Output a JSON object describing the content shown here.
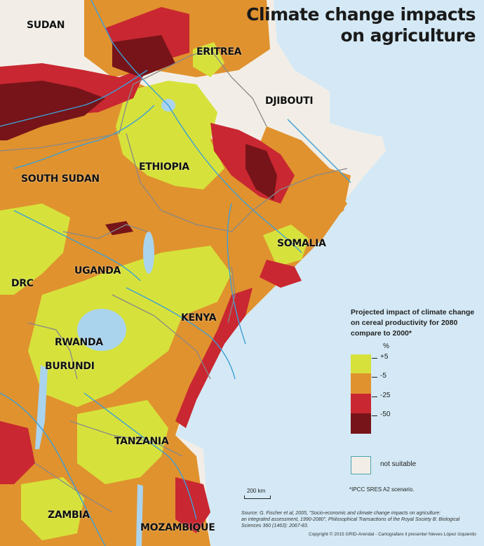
{
  "title": {
    "line1": "Climate change impacts",
    "line2": "on agriculture"
  },
  "countries": {
    "sudan": "SUDAN",
    "eritrea": "ERITREA",
    "djibouti": "DJIBOUTI",
    "ethiopia": "ETHIOPIA",
    "south_sudan": "SOUTH SUDAN",
    "somalia": "SOMALIA",
    "uganda": "UGANDA",
    "drc": "DRC",
    "kenya": "KENYA",
    "rwanda": "RWANDA",
    "burundi": "BURUNDI",
    "tanzania": "TANZANIA",
    "zambia": "ZAMBIA",
    "mozambique": "MOZAMBIQUE"
  },
  "legend": {
    "title_line1": "Projected impact of climate change",
    "title_line2": "on cereal productivity for 2080",
    "title_line3": "compare to 2000*",
    "unit": "%",
    "classes": [
      {
        "color": "#d6e23b",
        "label": "+5"
      },
      {
        "color": "#e0922e",
        "label": "-5"
      },
      {
        "color": "#c92731",
        "label": "-25"
      },
      {
        "color": "#761419",
        "label": "-50"
      }
    ],
    "not_suitable": {
      "color": "#f2eee7",
      "border": "#4fa3ad",
      "label": "not suitable"
    }
  },
  "colors": {
    "sea": "#d4e9f5",
    "rivers": "#3d9fd6",
    "lakes": "#aad3ee",
    "borders": "#888888"
  },
  "footnote": "*IPCC SRES A2 scenario.",
  "scale": "200 km",
  "source": {
    "line1": "Source: G. Fischer et al, 2005, \"Socio-economic and climate change impacts on agriculture:",
    "line2": "an integrated assessment, 1990-2080\", Philosophical Transactions of the Royal Society B: Biological",
    "line3": "Sciences 360 (1463): 2067-83."
  },
  "copyright": "Copyright © 2015 GRID-Arendal - Cartografare il presente/ Nieves López Izquierdo"
}
